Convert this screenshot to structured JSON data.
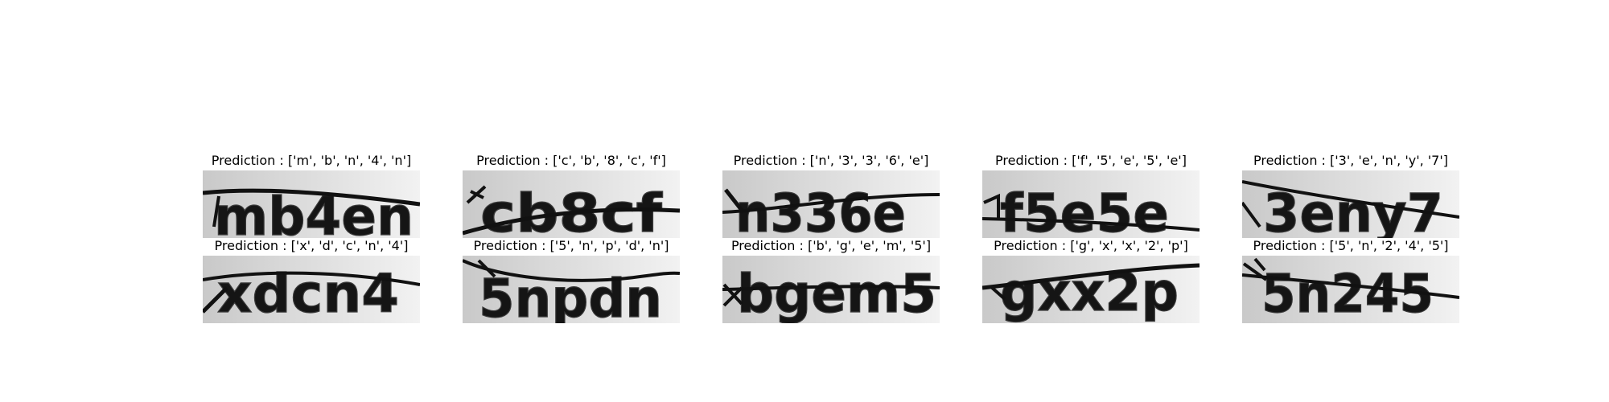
{
  "figure": {
    "panels": [
      {
        "title": "Prediction : ['m', 'b', 'n', '4', 'n']",
        "captcha": "mb4en"
      },
      {
        "title": "Prediction : ['c', 'b', '8', 'c', 'f']",
        "captcha": "cb8cf"
      },
      {
        "title": "Prediction : ['n', '3', '3', '6', 'e']",
        "captcha": "n336e"
      },
      {
        "title": "Prediction : ['f', '5', 'e', '5', 'e']",
        "captcha": "f5e5e"
      },
      {
        "title": "Prediction : ['3', 'e', 'n', 'y', '7']",
        "captcha": "3eny7"
      },
      {
        "title": "Prediction : ['x', 'd', 'c', 'n', '4']",
        "captcha": "xdcn4"
      },
      {
        "title": "Prediction : ['5', 'n', 'p', 'd', 'n']",
        "captcha": "5npdn"
      },
      {
        "title": "Prediction : ['b', 'g', 'e', 'm', '5']",
        "captcha": "bgem5"
      },
      {
        "title": "Prediction : ['g', 'x', 'x', '2', 'p']",
        "captcha": "gxx2p"
      },
      {
        "title": "Prediction : ['5', 'n', '2', '4', '5']",
        "captcha": "5n245"
      }
    ]
  }
}
